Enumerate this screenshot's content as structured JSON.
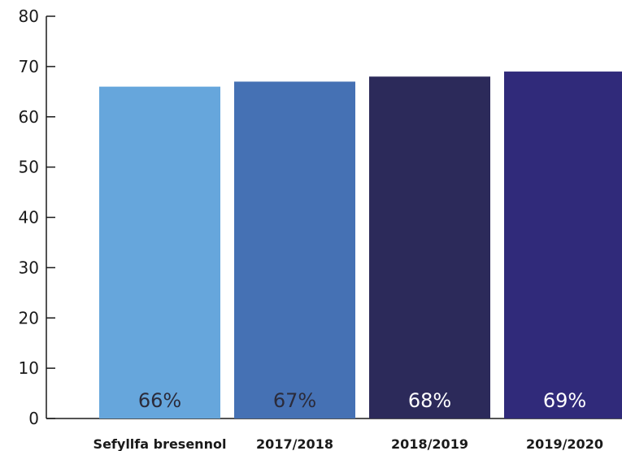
{
  "chart_data": {
    "type": "bar",
    "title": "",
    "xlabel": "",
    "ylabel": "",
    "categories": [
      "Sefyllfa bresennol",
      "2017/2018",
      "2018/2019",
      "2019/2020"
    ],
    "values": [
      66,
      67,
      68,
      69
    ],
    "data_labels": [
      "66%",
      "67%",
      "68%",
      "69%"
    ],
    "bar_colors": [
      "#66a6dc",
      "#4571b4",
      "#2c2a5a",
      "#302a7a"
    ],
    "data_label_colors": [
      "#2b2b3a",
      "#2b2b3a",
      "#ffffff",
      "#ffffff"
    ],
    "yticks": [
      "0",
      "10",
      "20",
      "30",
      "40",
      "50",
      "60",
      "70",
      "80"
    ],
    "ylim": [
      0,
      80
    ],
    "grid": false,
    "legend": "none"
  }
}
